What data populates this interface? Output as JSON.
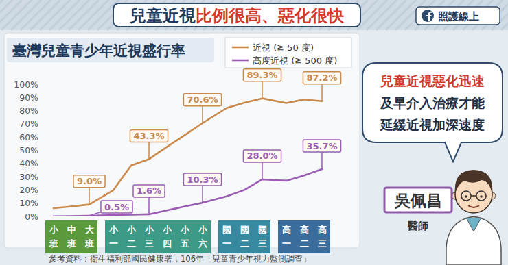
{
  "header": {
    "title": "兒童近視",
    "title_highlight": "比例很高、惡化很快",
    "brand": "照護線上"
  },
  "chart_data": {
    "type": "line",
    "title": "臺灣兒童青少年近視盛行率",
    "categories": [
      "小班",
      "中班",
      "大班",
      "小一",
      "小二",
      "小三",
      "小四",
      "小五",
      "小六",
      "國一",
      "國二",
      "國三",
      "高一",
      "高二",
      "高三"
    ],
    "series": [
      {
        "name": "近視 (≧ 50 度)",
        "color": "#c98a4b",
        "values": [
          6.2,
          7.5,
          9.0,
          19.8,
          38.5,
          43.3,
          52.5,
          61.5,
          70.6,
          82.0,
          86.0,
          89.3,
          85.8,
          88.5,
          87.2
        ],
        "value_labels": [
          null,
          null,
          "9.0%",
          null,
          null,
          "43.3%",
          null,
          null,
          "70.6%",
          null,
          null,
          "89.3%",
          null,
          null,
          "87.2%"
        ]
      },
      {
        "name": "高度近視 (≧ 500 度)",
        "color": "#9a5db3",
        "values": [
          0.1,
          0.2,
          0.5,
          1.0,
          1.3,
          1.6,
          4.5,
          7.5,
          10.3,
          15.2,
          20.0,
          28.0,
          27.0,
          31.0,
          35.7
        ],
        "value_labels": [
          null,
          null,
          "0.5%",
          null,
          null,
          "1.6%",
          null,
          null,
          "10.3%",
          null,
          null,
          "28.0%",
          null,
          null,
          "35.7%"
        ]
      }
    ],
    "ylim": [
      0,
      100
    ],
    "yticks": [
      {
        "value": 0,
        "label": "0%"
      },
      {
        "value": 10,
        "label": "10%"
      },
      {
        "value": 20,
        "label": "20%"
      },
      {
        "value": 30,
        "label": "30%"
      },
      {
        "value": 40,
        "label": "40%"
      },
      {
        "value": 50,
        "label": "50%"
      },
      {
        "value": 60,
        "label": "60%"
      },
      {
        "value": 70,
        "label": "70%"
      },
      {
        "value": 80,
        "label": "80%"
      },
      {
        "value": 90,
        "label": "90%"
      },
      {
        "value": 100,
        "label": "100%"
      }
    ],
    "grid": false,
    "legend": "top-right",
    "data_labels": true
  },
  "callout": {
    "lines": [
      "兒童近視惡化迅速",
      "及早介入治療才能",
      "延緩近視加深速度"
    ]
  },
  "doctor": {
    "name": "吳佩昌",
    "title": "醫師"
  },
  "source": "參考資料：衛生福利部國民健康署，106年「兒童青少年視力監測調查」"
}
